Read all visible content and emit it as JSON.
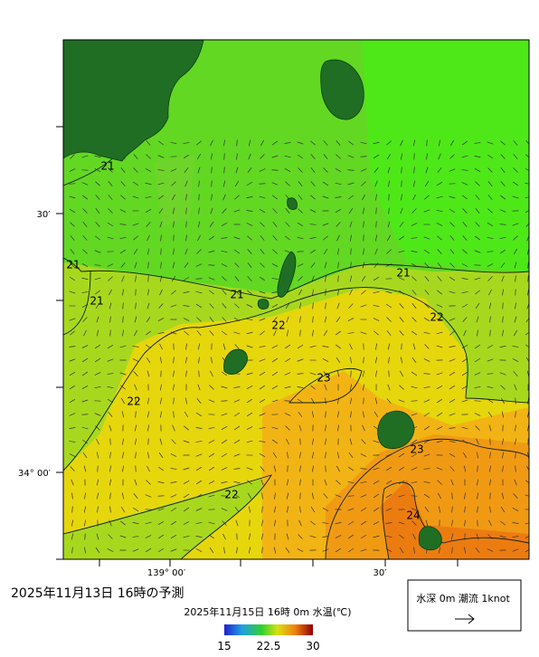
{
  "map": {
    "title": "2025年11月13日  16時の予測",
    "subtitle": "2025年11月15日 16時 0m 水温(℃)",
    "lat_labels": [
      "30′",
      "34° 00′"
    ],
    "lon_labels": [
      "139° 00′",
      "30′"
    ],
    "contour_labels": [
      "21",
      "21",
      "21",
      "21",
      "21",
      "22",
      "22",
      "22",
      "22",
      "23",
      "23",
      "24"
    ],
    "colorbar": {
      "range": [
        15,
        30
      ],
      "ticks": [
        15,
        22.5,
        30
      ]
    },
    "legend": "水深 0m 潮流 1knot"
  }
}
